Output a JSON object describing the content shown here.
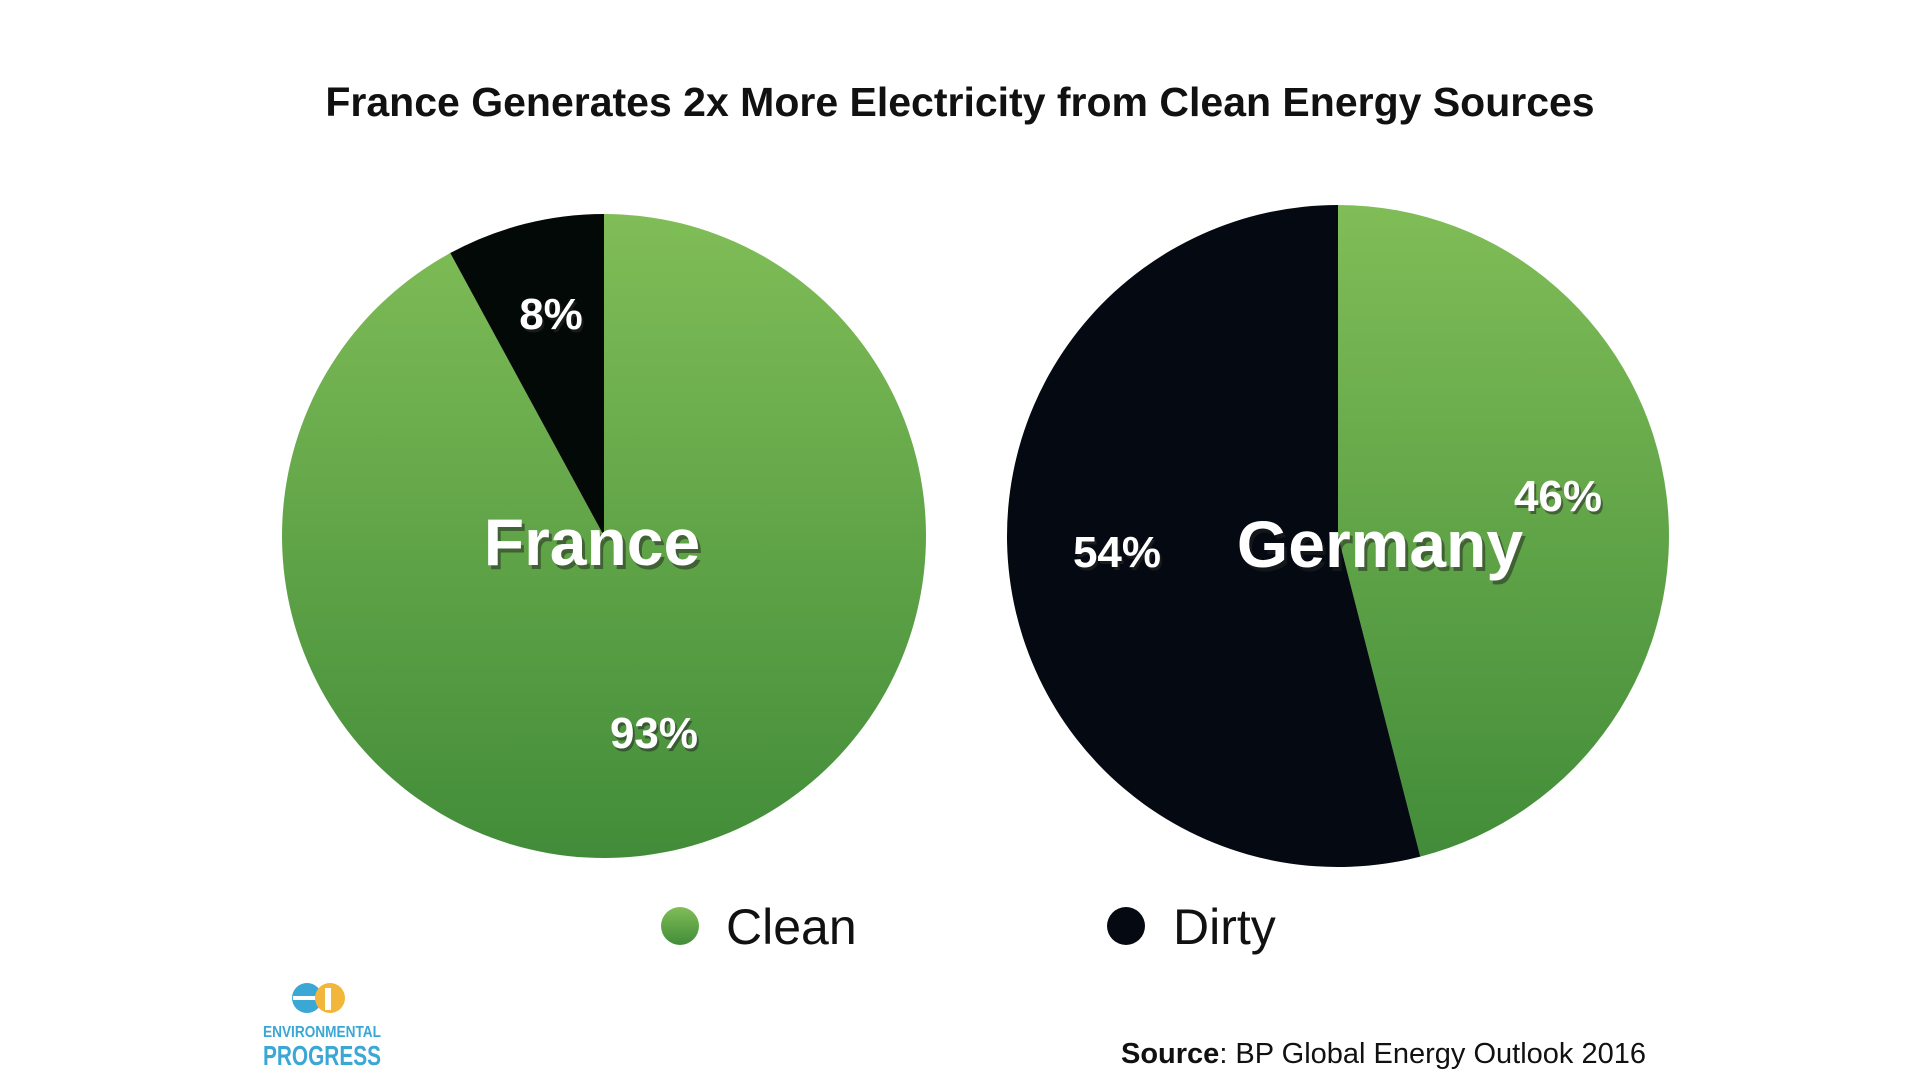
{
  "chart_data": {
    "type": "pie",
    "title": "France Generates 2x More Electricity from Clean Energy Sources",
    "legend": {
      "placement": "bottom-center",
      "entries": [
        {
          "label": "Clean",
          "color": "#5ea648"
        },
        {
          "label": "Dirty",
          "color": "#050a12"
        }
      ]
    },
    "pies": [
      {
        "name": "France",
        "slices": [
          {
            "label": "Clean",
            "value": 93,
            "display": "93%",
            "color": "#5ea648"
          },
          {
            "label": "Dirty",
            "value": 8,
            "display": "8%",
            "color": "#030906"
          }
        ]
      },
      {
        "name": "Germany",
        "slices": [
          {
            "label": "Clean",
            "value": 46,
            "display": "46%",
            "color": "#5ea648"
          },
          {
            "label": "Dirty",
            "value": 54,
            "display": "54%",
            "color": "#050a12"
          }
        ]
      }
    ]
  },
  "source": {
    "label": "Source",
    "text": ": BP Global Energy Outlook 2016"
  },
  "logo": {
    "line1": "ENVIRONMENTAL",
    "line2": "PROGRESS",
    "colors": {
      "blue": "#3aa7d4",
      "yellow": "#f2b63a"
    }
  }
}
